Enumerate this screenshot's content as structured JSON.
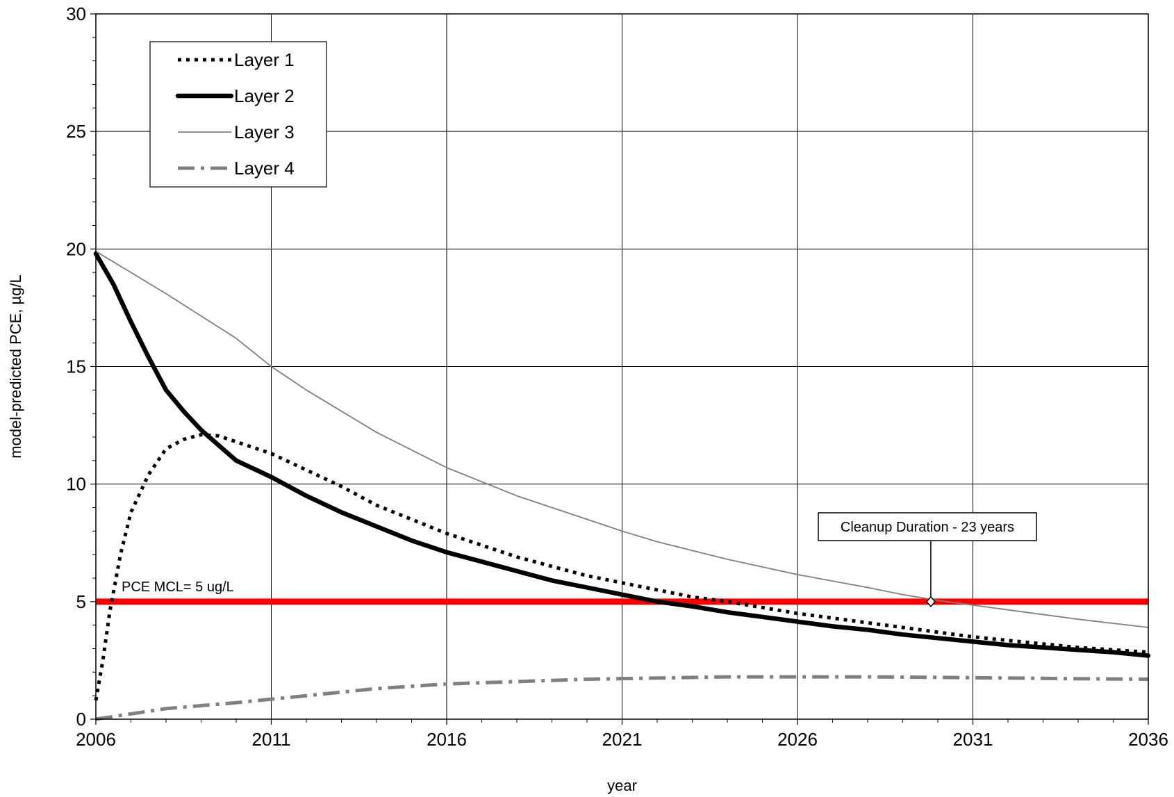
{
  "chart_data": {
    "type": "line",
    "xlabel": "year",
    "ylabel": "model-predicted PCE, µg/L",
    "xlim": [
      2006,
      2036
    ],
    "ylim": [
      0,
      30
    ],
    "x_ticks": [
      2006,
      2011,
      2016,
      2021,
      2026,
      2031,
      2036
    ],
    "y_ticks": [
      0,
      5,
      10,
      15,
      20,
      25,
      30
    ],
    "grid": true,
    "legend_position": "top-left",
    "series": [
      {
        "name": "Layer 1",
        "color": "#000000",
        "style": "dotted",
        "points": [
          [
            2006,
            0.8
          ],
          [
            2006.2,
            2.5
          ],
          [
            2006.4,
            4.6
          ],
          [
            2006.7,
            7.0
          ],
          [
            2007,
            8.8
          ],
          [
            2007.5,
            10.4
          ],
          [
            2008,
            11.5
          ],
          [
            2008.5,
            11.9
          ],
          [
            2009,
            12.1
          ],
          [
            2009.5,
            12.05
          ],
          [
            2010,
            11.8
          ],
          [
            2011,
            11.3
          ],
          [
            2012,
            10.6
          ],
          [
            2013,
            9.9
          ],
          [
            2014,
            9.1
          ],
          [
            2015,
            8.5
          ],
          [
            2016,
            7.9
          ],
          [
            2017,
            7.4
          ],
          [
            2018,
            6.9
          ],
          [
            2019,
            6.5
          ],
          [
            2020,
            6.1
          ],
          [
            2021,
            5.8
          ],
          [
            2022,
            5.5
          ],
          [
            2023,
            5.2
          ],
          [
            2024,
            5.0
          ],
          [
            2025,
            4.75
          ],
          [
            2026,
            4.5
          ],
          [
            2027,
            4.3
          ],
          [
            2028,
            4.1
          ],
          [
            2029,
            3.9
          ],
          [
            2030,
            3.7
          ],
          [
            2031,
            3.5
          ],
          [
            2032,
            3.35
          ],
          [
            2033,
            3.2
          ],
          [
            2034,
            3.05
          ],
          [
            2035,
            2.95
          ],
          [
            2036,
            2.85
          ]
        ]
      },
      {
        "name": "Layer 2",
        "color": "#000000",
        "style": "solid-thick",
        "points": [
          [
            2006,
            19.8
          ],
          [
            2006.5,
            18.5
          ],
          [
            2007,
            16.9
          ],
          [
            2007.5,
            15.4
          ],
          [
            2008,
            14.0
          ],
          [
            2008.5,
            13.1
          ],
          [
            2009,
            12.3
          ],
          [
            2010,
            11.0
          ],
          [
            2011,
            10.3
          ],
          [
            2012,
            9.5
          ],
          [
            2013,
            8.8
          ],
          [
            2014,
            8.2
          ],
          [
            2015,
            7.6
          ],
          [
            2016,
            7.1
          ],
          [
            2017,
            6.7
          ],
          [
            2018,
            6.3
          ],
          [
            2019,
            5.9
          ],
          [
            2020,
            5.6
          ],
          [
            2021,
            5.3
          ],
          [
            2022,
            5.0
          ],
          [
            2023,
            4.8
          ],
          [
            2024,
            4.55
          ],
          [
            2025,
            4.35
          ],
          [
            2026,
            4.15
          ],
          [
            2027,
            3.95
          ],
          [
            2028,
            3.8
          ],
          [
            2029,
            3.6
          ],
          [
            2030,
            3.45
          ],
          [
            2031,
            3.3
          ],
          [
            2032,
            3.15
          ],
          [
            2033,
            3.05
          ],
          [
            2034,
            2.95
          ],
          [
            2035,
            2.85
          ],
          [
            2036,
            2.7
          ]
        ]
      },
      {
        "name": "Layer 3",
        "color": "#808080",
        "style": "solid-thin",
        "points": [
          [
            2006,
            19.9
          ],
          [
            2008,
            18.1
          ],
          [
            2010,
            16.2
          ],
          [
            2011,
            15.0
          ],
          [
            2012,
            14.0
          ],
          [
            2014,
            12.2
          ],
          [
            2016,
            10.7
          ],
          [
            2018,
            9.5
          ],
          [
            2020,
            8.5
          ],
          [
            2021,
            8.0
          ],
          [
            2022,
            7.55
          ],
          [
            2024,
            6.8
          ],
          [
            2026,
            6.15
          ],
          [
            2028,
            5.6
          ],
          [
            2029,
            5.3
          ],
          [
            2030,
            5.05
          ],
          [
            2031,
            4.85
          ],
          [
            2032,
            4.65
          ],
          [
            2034,
            4.25
          ],
          [
            2036,
            3.9
          ]
        ]
      },
      {
        "name": "Layer 4",
        "color": "#808080",
        "style": "dash-dot",
        "points": [
          [
            2006,
            0.0
          ],
          [
            2008,
            0.45
          ],
          [
            2010,
            0.7
          ],
          [
            2011,
            0.85
          ],
          [
            2012,
            1.0
          ],
          [
            2014,
            1.3
          ],
          [
            2016,
            1.5
          ],
          [
            2018,
            1.6
          ],
          [
            2020,
            1.7
          ],
          [
            2022,
            1.75
          ],
          [
            2024,
            1.8
          ],
          [
            2026,
            1.8
          ],
          [
            2028,
            1.8
          ],
          [
            2030,
            1.78
          ],
          [
            2032,
            1.75
          ],
          [
            2034,
            1.72
          ],
          [
            2036,
            1.7
          ]
        ]
      }
    ],
    "reference_line": {
      "label": "PCE MCL= 5 ug/L",
      "y": 5,
      "color": "#ff0000"
    },
    "annotation": {
      "label": "Cleanup Duration - 23 years",
      "x": 2029.8,
      "y": 5
    }
  }
}
